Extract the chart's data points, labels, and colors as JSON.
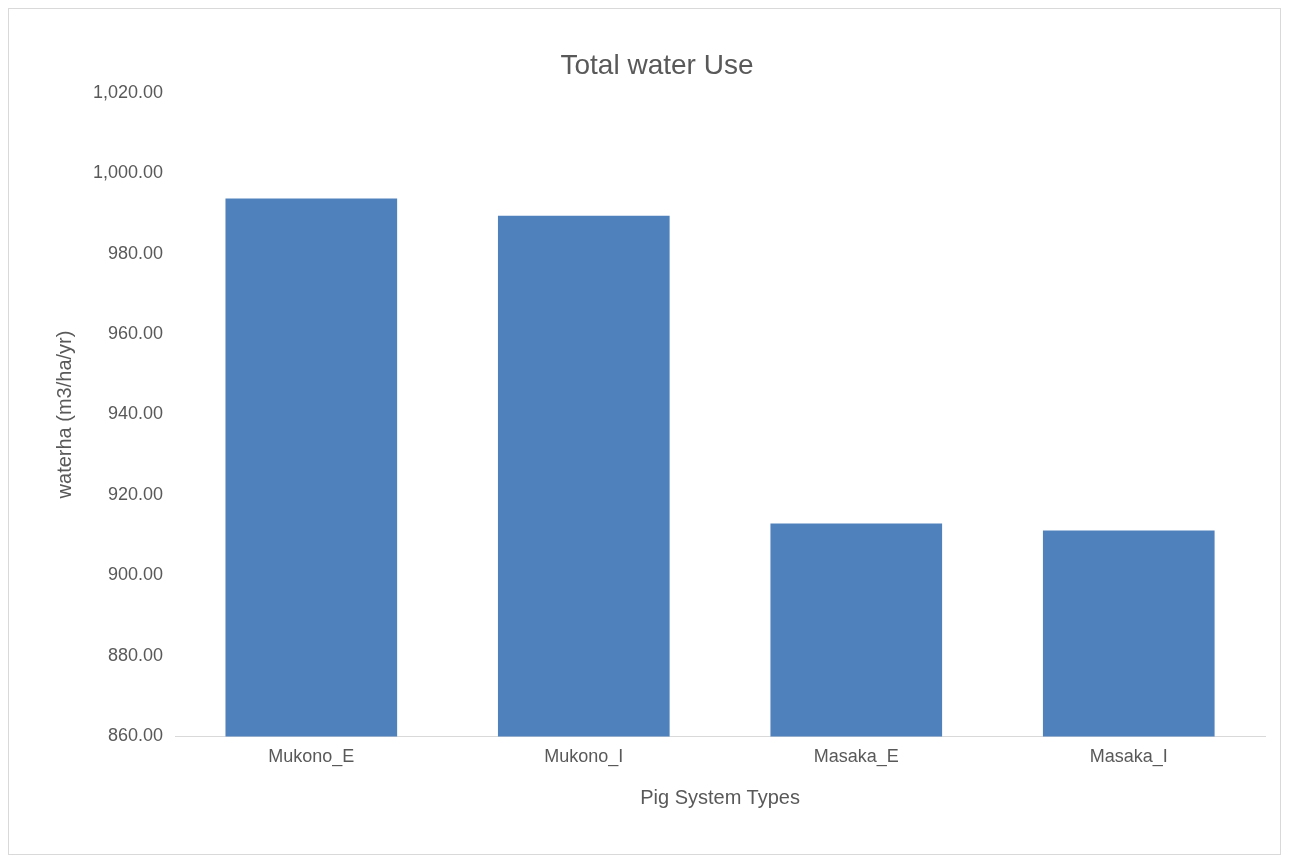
{
  "chart_data": {
    "type": "bar",
    "title": "Total water Use",
    "xlabel": "Pig System Types",
    "ylabel": "waterha (m3/ha/yr)",
    "categories": [
      "Mukono_E",
      "Mukono_I",
      "Masaka_E",
      "Masaka_I"
    ],
    "values": [
      993.7,
      989.4,
      912.9,
      911.2
    ],
    "color": "#4f81bd",
    "ylim": [
      860,
      1020
    ],
    "yticks": [
      {
        "value": 860,
        "label": "860.00"
      },
      {
        "value": 880,
        "label": "880.00"
      },
      {
        "value": 900,
        "label": "900.00"
      },
      {
        "value": 920,
        "label": "920.00"
      },
      {
        "value": 940,
        "label": "940.00"
      },
      {
        "value": 960,
        "label": "960.00"
      },
      {
        "value": 980,
        "label": "980.00"
      },
      {
        "value": 1000,
        "label": "1,000.00"
      },
      {
        "value": 1020,
        "label": "1,020.00"
      }
    ],
    "grid": false,
    "legend": false
  }
}
